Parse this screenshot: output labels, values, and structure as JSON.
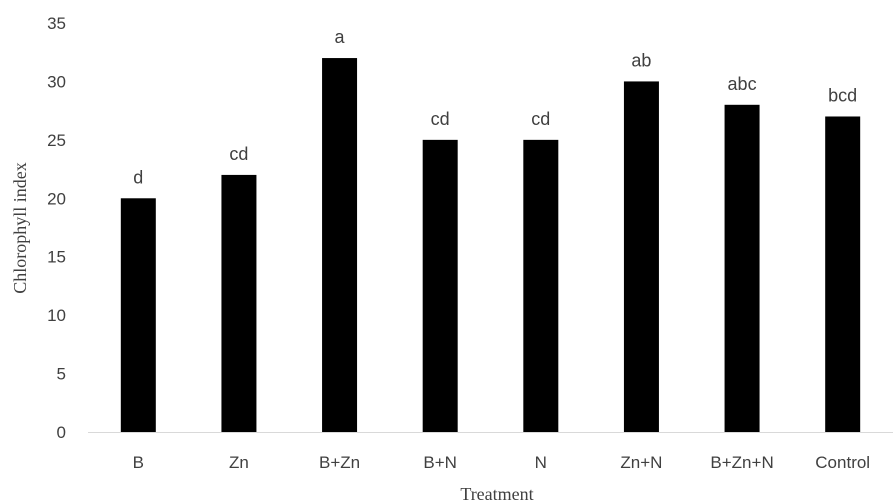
{
  "chart_data": {
    "type": "bar",
    "title": "",
    "xlabel": "Treatment",
    "ylabel": "Chlorophyll index",
    "categories": [
      "B",
      "Zn",
      "B+Zn",
      "B+N",
      "N",
      "Zn+N",
      "B+Zn+N",
      "Control"
    ],
    "values": [
      20,
      22,
      32,
      25,
      25,
      30,
      28,
      27
    ],
    "data_labels": [
      "d",
      "cd",
      "a",
      "cd",
      "cd",
      "ab",
      "abc",
      "bcd"
    ],
    "ylim": [
      0,
      35
    ],
    "yticks": [
      "0",
      "5",
      "10",
      "15",
      "20",
      "25",
      "30",
      "35"
    ],
    "bar_color": "#000000",
    "grid": false,
    "legend": "none"
  }
}
